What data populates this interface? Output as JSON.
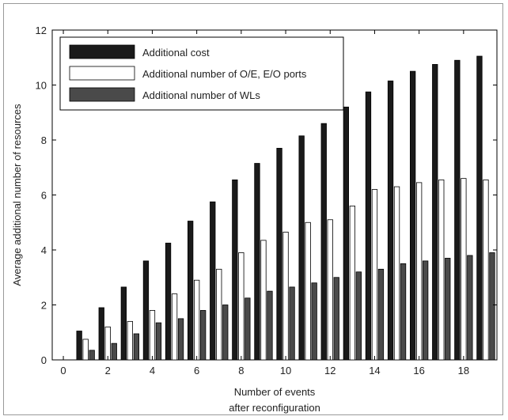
{
  "chart_data": {
    "type": "bar",
    "title": "",
    "xlabel": [
      "Number of events",
      "after reconfiguration"
    ],
    "ylabel": "Average additional number of resources",
    "xlim": [
      -0.5,
      19.5
    ],
    "ylim": [
      0,
      12
    ],
    "x_ticks": [
      0,
      2,
      4,
      6,
      8,
      10,
      12,
      14,
      16,
      18
    ],
    "y_ticks": [
      0,
      2,
      4,
      6,
      8,
      10,
      12
    ],
    "grid": false,
    "legend_position": "top-left",
    "categories": [
      1,
      2,
      3,
      4,
      5,
      6,
      7,
      8,
      9,
      10,
      11,
      12,
      13,
      14,
      15,
      16,
      17,
      18,
      19
    ],
    "series": [
      {
        "name": "Additional cost",
        "color": "#1a1a1a",
        "values": [
          1.05,
          1.9,
          2.65,
          3.6,
          4.25,
          5.05,
          5.75,
          6.55,
          7.15,
          7.7,
          8.15,
          8.6,
          9.2,
          9.75,
          10.15,
          10.5,
          10.75,
          10.9,
          11.05
        ]
      },
      {
        "name": "Additional number of O/E, E/O ports",
        "color": "#ffffff",
        "values": [
          0.75,
          1.2,
          1.4,
          1.8,
          2.4,
          2.9,
          3.3,
          3.9,
          4.35,
          4.65,
          5.0,
          5.1,
          5.6,
          6.2,
          6.3,
          6.45,
          6.55,
          6.6,
          6.55
        ]
      },
      {
        "name": "Additional number of WLs",
        "color": "#4a4a4a",
        "values": [
          0.35,
          0.6,
          0.95,
          1.35,
          1.5,
          1.8,
          2.0,
          2.25,
          2.5,
          2.65,
          2.8,
          3.0,
          3.2,
          3.3,
          3.5,
          3.6,
          3.7,
          3.8,
          3.9
        ]
      }
    ]
  }
}
